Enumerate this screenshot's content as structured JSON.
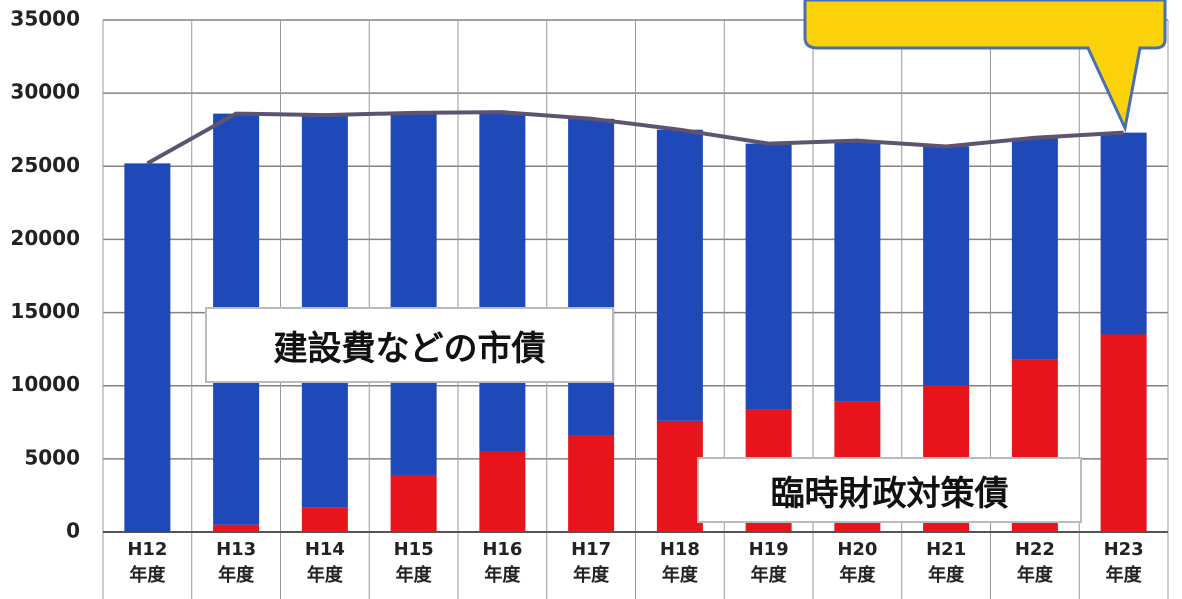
{
  "chart_data": {
    "type": "bar",
    "stacked": true,
    "categories": [
      "H12年度",
      "H13年度",
      "H14年度",
      "H15年度",
      "H16年度",
      "H17年度",
      "H18年度",
      "H19年度",
      "H20年度",
      "H21年度",
      "H22年度",
      "H23年度"
    ],
    "series": [
      {
        "name": "臨時財政対策債",
        "color": "#e8141c",
        "values": [
          0,
          500,
          1700,
          3900,
          5500,
          6600,
          7600,
          8350,
          8900,
          10000,
          11800,
          13500
        ]
      },
      {
        "name": "建設費などの市債",
        "color": "#1f48b8",
        "values": [
          25200,
          28100,
          26800,
          24750,
          23200,
          21650,
          19900,
          18200,
          17850,
          16350,
          15150,
          13800
        ]
      },
      {
        "type": "line",
        "color": "#5f5470",
        "values": [
          25200,
          28600,
          28500,
          28650,
          28700,
          28250,
          27500,
          26550,
          26750,
          26350,
          26950,
          27300
        ]
      }
    ],
    "ylim": [
      0,
      35000
    ],
    "yticks": [
      0,
      5000,
      10000,
      15000,
      20000,
      25000,
      30000,
      35000
    ],
    "grid": true
  }
}
